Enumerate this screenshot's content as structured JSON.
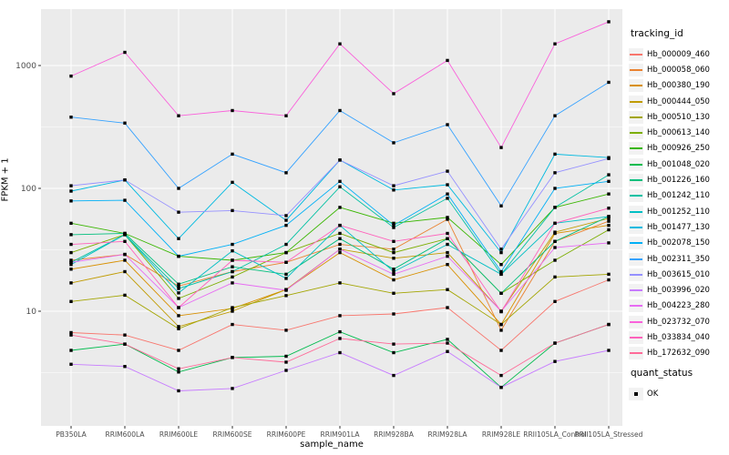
{
  "chart_data": {
    "type": "line",
    "xlabel": "sample_name",
    "ylabel": "FPKM + 1",
    "y_scale": "log10",
    "y_tick_labels": [
      "1000",
      "100",
      "10"
    ],
    "y_major_breaks": [
      1000,
      100,
      10
    ],
    "y_minor_breaks": [
      316.2,
      31.62,
      3.162
    ],
    "ylim": [
      1.2,
      2800
    ],
    "grid": true,
    "legend_position": "right",
    "panel_bg": "#EBEBEB",
    "grid_color": "#FFFFFF",
    "axis_text_color": "#4D4D4D",
    "point_color": "#000000",
    "categories": [
      "PB350LA",
      "RRIM600LA",
      "RRIM600LE",
      "RRIM600SE",
      "RRIM600PE",
      "RRIM901LA",
      "RRIM928BA",
      "RRIM928LA",
      "RRIM928LE",
      "RRII105LA_Control",
      "RRII105LA_Stressed"
    ],
    "legend": {
      "title": "tracking_id"
    },
    "quant_status": {
      "title": "quant_status",
      "items": [
        "OK"
      ]
    },
    "series": [
      {
        "name": "Hb_000009_460",
        "color": "#F8766D",
        "values": [
          6.7,
          6.4,
          4.8,
          7.8,
          7.0,
          9.2,
          9.5,
          10.7,
          4.8,
          12,
          18
        ]
      },
      {
        "name": "Hb_000058_060",
        "color": "#EA8331",
        "values": [
          26,
          29,
          16,
          21,
          25,
          35,
          32,
          56,
          7.0,
          37,
          54
        ]
      },
      {
        "name": "Hb_000380_190",
        "color": "#D89000",
        "values": [
          22,
          26,
          9.2,
          10.5,
          15,
          30,
          18,
          24,
          7.8,
          43,
          50
        ]
      },
      {
        "name": "Hb_000444_050",
        "color": "#C09B00",
        "values": [
          17,
          21,
          7.5,
          10,
          15,
          32,
          27,
          30,
          10,
          44,
          57
        ]
      },
      {
        "name": "Hb_000510_130",
        "color": "#A3A500",
        "values": [
          12,
          13.5,
          7.2,
          10.7,
          13.4,
          17,
          14,
          15,
          7.8,
          19,
          20
        ]
      },
      {
        "name": "Hb_000613_140",
        "color": "#7CAE00",
        "values": [
          30,
          42,
          12.7,
          19,
          30,
          43,
          30,
          39,
          14,
          26,
          46
        ]
      },
      {
        "name": "Hb_000926_250",
        "color": "#39B600",
        "values": [
          52,
          43,
          28,
          26,
          30,
          70,
          52,
          58,
          24,
          70,
          90
        ]
      },
      {
        "name": "Hb_001048_020",
        "color": "#00BB4E",
        "values": [
          4.8,
          5.4,
          3.2,
          4.2,
          4.3,
          6.8,
          4.6,
          5.9,
          2.4,
          5.5,
          7.8
        ]
      },
      {
        "name": "Hb_001226_160",
        "color": "#00BF7D",
        "values": [
          42,
          43,
          16.6,
          23,
          20,
          39,
          22,
          39,
          14,
          37,
          59
        ]
      },
      {
        "name": "Hb_001242_110",
        "color": "#00C1A3",
        "values": [
          25,
          42,
          15.3,
          21,
          35,
          103,
          48,
          83,
          20,
          70,
          129
        ]
      },
      {
        "name": "Hb_001252_110",
        "color": "#00BFC4",
        "values": [
          24,
          42,
          14.1,
          31,
          18.5,
          50,
          21,
          35,
          20,
          52,
          59
        ]
      },
      {
        "name": "Hb_001477_130",
        "color": "#00BAE0",
        "values": [
          95,
          117,
          39,
          112,
          55,
          170,
          97,
          107,
          30,
          190,
          178
        ]
      },
      {
        "name": "Hb_002078_150",
        "color": "#00B0F6",
        "values": [
          79,
          80,
          28,
          35,
          50,
          114,
          50,
          90,
          21,
          100,
          114
        ]
      },
      {
        "name": "Hb_002311_350",
        "color": "#35A2FF",
        "values": [
          380,
          340,
          100,
          190,
          134,
          430,
          235,
          330,
          72,
          390,
          730
        ]
      },
      {
        "name": "Hb_003615_010",
        "color": "#9590FF",
        "values": [
          105,
          117,
          64,
          66,
          60,
          170,
          105,
          138,
          32,
          134,
          175
        ]
      },
      {
        "name": "Hb_003996_020",
        "color": "#C77CFF",
        "values": [
          3.7,
          3.55,
          2.25,
          2.35,
          3.3,
          4.6,
          3.0,
          4.7,
          2.4,
          3.9,
          4.8
        ]
      },
      {
        "name": "Hb_004223_280",
        "color": "#E76BF3",
        "values": [
          25,
          29,
          10.7,
          17,
          14.8,
          32,
          20,
          28,
          10,
          33,
          36
        ]
      },
      {
        "name": "Hb_023732_070",
        "color": "#FA62DB",
        "values": [
          820,
          1280,
          390,
          430,
          390,
          1500,
          590,
          1100,
          215,
          1500,
          2270
        ]
      },
      {
        "name": "Hb_033834_040",
        "color": "#FF62BC",
        "values": [
          35,
          37,
          10.7,
          26,
          25,
          50,
          37,
          43,
          9.9,
          52,
          69
        ]
      },
      {
        "name": "Hb_172632_090",
        "color": "#FF6A98",
        "values": [
          6.4,
          5.4,
          3.4,
          4.2,
          3.85,
          6.0,
          5.4,
          5.5,
          3.0,
          5.5,
          7.8
        ]
      }
    ]
  }
}
